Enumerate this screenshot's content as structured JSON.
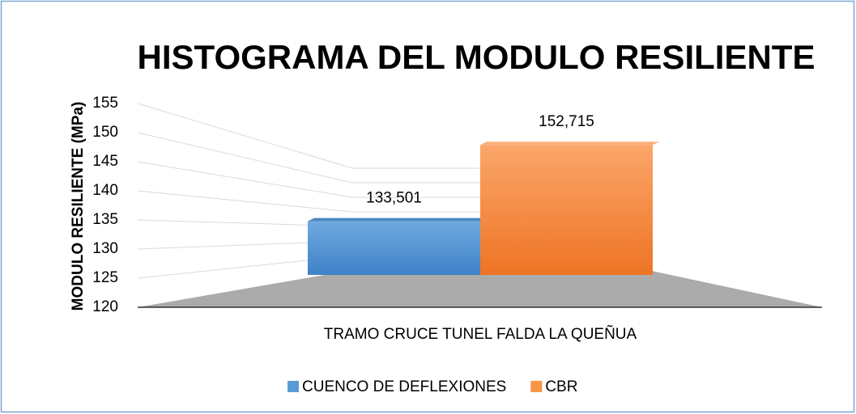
{
  "chart_data": {
    "type": "bar3d",
    "title": "HISTOGRAMA DEL MODULO RESILIENTE",
    "y_label": "MODULO RESILIENTE (MPa)",
    "categories": [
      "TRAMO CRUCE TUNEL FALDA LA QUEÑUA"
    ],
    "series": [
      {
        "name": "CUENCO DE DEFLEXIONES",
        "color": "#5b9bd5",
        "values": [
          133.501
        ],
        "value_labels": [
          "133,501"
        ]
      },
      {
        "name": "CBR",
        "color": "#f79646",
        "values": [
          152.715
        ],
        "value_labels": [
          "152,715"
        ]
      }
    ],
    "ylim": [
      120,
      155
    ],
    "yticks": [
      120,
      125,
      130,
      135,
      140,
      145,
      150,
      155
    ],
    "grid": true
  }
}
